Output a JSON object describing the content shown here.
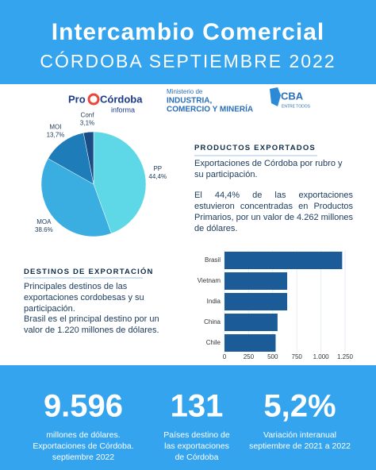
{
  "header": {
    "title": "Intercambio Comercial",
    "subtitle": "CÓRDOBA SEPTIEMBRE 2022"
  },
  "logos": {
    "pro": "Pro",
    "cordoba": "Córdoba",
    "informa": "informa",
    "ministerio": "Ministerio de",
    "industria": "INDUSTRIA,",
    "comercio": "COMERCIO Y MINERÍA",
    "cba": "CBA",
    "entre": "ENTRE TODOS"
  },
  "productos": {
    "heading": "PRODUCTOS EXPORTADOS",
    "p1": "Exportaciones de Córdoba por rubro y su participación.",
    "p2": "El 44,4% de las exportaciones estuvieron concentradas en Productos Primarios, por un valor de 4.262 millones de dólares."
  },
  "destinos": {
    "heading": "DESTINOS DE EXPORTACIÓN",
    "p1": "Principales destinos de las exportaciones cordobesas y su participación.",
    "p2": "Brasil es el principal destino por un valor de 1.220 millones de dólares."
  },
  "chart_data": [
    {
      "type": "pie",
      "categories": [
        "PP",
        "MOA",
        "MOI",
        "Conf"
      ],
      "values": [
        44.4,
        38.6,
        13.7,
        3.1
      ],
      "value_labels": [
        "44,4%",
        "38.6%",
        "13,7%",
        "3,1%"
      ],
      "colors": [
        "#5ed8e6",
        "#3aaee0",
        "#1e7db8",
        "#1a4c85"
      ]
    },
    {
      "type": "hbar",
      "categories": [
        "Brasil",
        "Vietnam",
        "India",
        "China",
        "Chile"
      ],
      "values": [
        1220,
        650,
        650,
        550,
        530
      ],
      "color": "#1b5b98",
      "xlim": [
        0,
        1250
      ],
      "xticks": [
        0,
        250,
        500,
        750,
        {
          "value": 1000,
          "label": "1.000"
        },
        {
          "value": 1250,
          "label": "1.250"
        }
      ]
    }
  ],
  "stats": [
    {
      "value": "9.596",
      "caption": [
        "millones de dólares.",
        "Exportaciones de Córdoba.",
        "septiembre 2022"
      ]
    },
    {
      "value": "131",
      "caption": [
        "Países destino de",
        "las exportaciones",
        "de Córdoba"
      ]
    },
    {
      "value": "5,2%",
      "caption": [
        "Variación interanual",
        "septiembre de 2021 a 2022"
      ]
    }
  ]
}
